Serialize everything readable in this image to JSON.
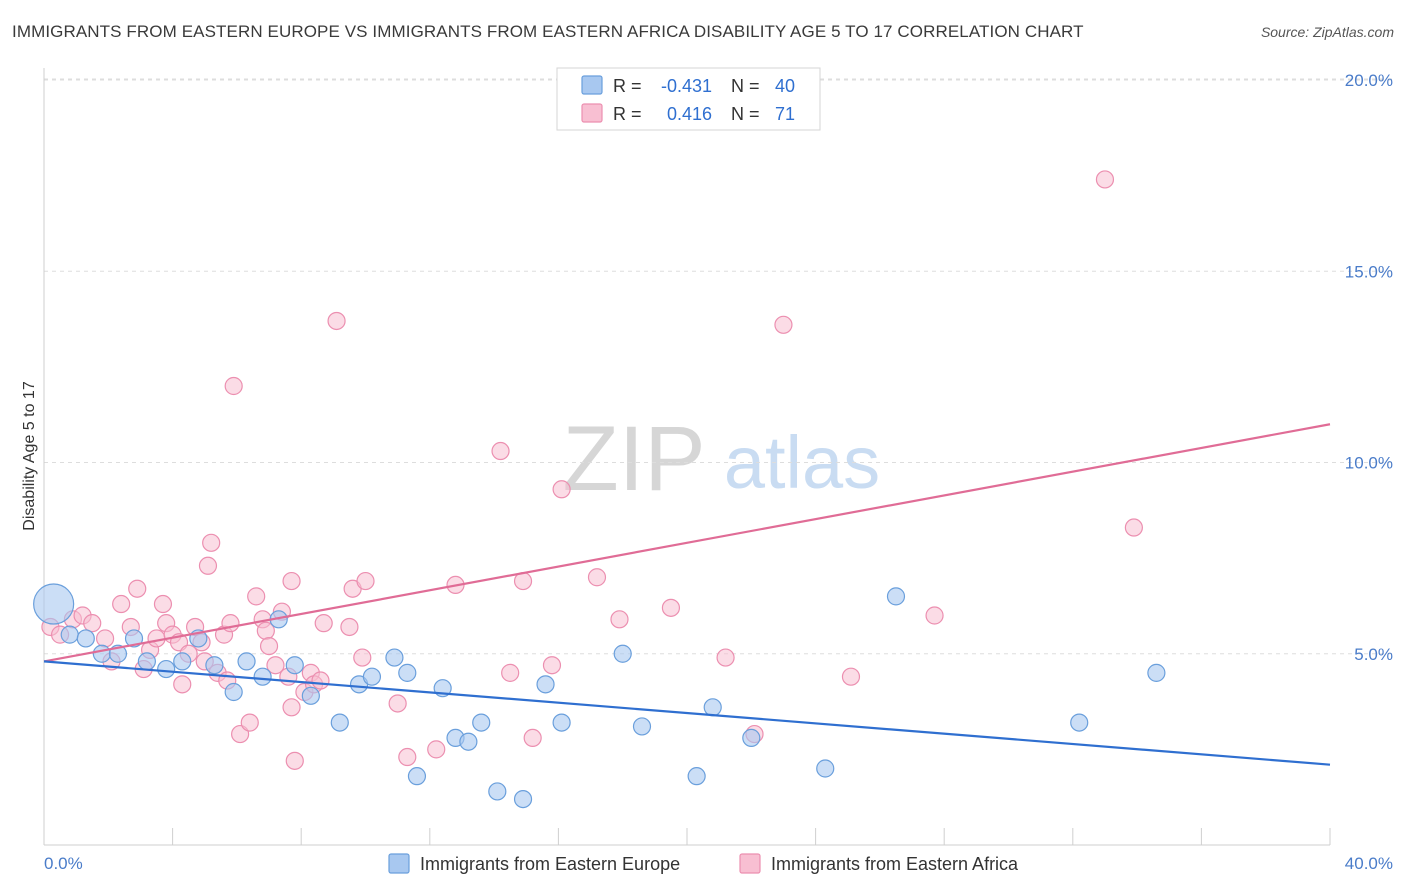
{
  "header": {
    "title": "IMMIGRANTS FROM EASTERN EUROPE VS IMMIGRANTS FROM EASTERN AFRICA DISABILITY AGE 5 TO 17 CORRELATION CHART",
    "source": "Source: ZipAtlas.com"
  },
  "watermark": {
    "zip": "ZIP",
    "atlas": "atlas"
  },
  "legend_box": {
    "rows": [
      {
        "r_label": "R =",
        "r_value": "-0.431",
        "n_label": "N =",
        "n_value": "40"
      },
      {
        "r_label": "R =",
        "r_value": "0.416",
        "n_label": "N =",
        "n_value": "71"
      }
    ]
  },
  "colors": {
    "blue_fill": "#a8c8f0",
    "blue_stroke": "#6a9fdc",
    "blue_line": "#2f6fd0",
    "pink_fill": "#f8bfd2",
    "pink_stroke": "#ec8fb0",
    "pink_line": "#e06c96",
    "tick_label": "#4a7cc9",
    "grid": "#dddddd"
  },
  "chart_data": {
    "type": "scatter",
    "title": "IMMIGRANTS FROM EASTERN EUROPE VS IMMIGRANTS FROM EASTERN AFRICA DISABILITY AGE 5 TO 17 CORRELATION CHART",
    "xlabel": "",
    "ylabel": "Disability Age 5 to 17",
    "xlim": [
      0,
      40
    ],
    "ylim": [
      0,
      20.8
    ],
    "x_tick_labels": [
      "0.0%",
      "40.0%"
    ],
    "y_ticks": [
      5,
      10,
      15,
      20
    ],
    "y_tick_labels": [
      "5.0%",
      "10.0%",
      "15.0%",
      "20.0%"
    ],
    "grid": true,
    "legend_position": "bottom-center",
    "series": [
      {
        "name": "Immigrants from Eastern Europe",
        "color": "#a8c8f0",
        "r": -0.431,
        "n": 40,
        "trend": {
          "x": [
            0,
            40
          ],
          "y": [
            4.8,
            2.1
          ]
        },
        "points": [
          {
            "x": 0.3,
            "y": 6.3,
            "big": true
          },
          {
            "x": 0.8,
            "y": 5.5
          },
          {
            "x": 1.3,
            "y": 5.4
          },
          {
            "x": 1.8,
            "y": 5.0
          },
          {
            "x": 2.3,
            "y": 5.0
          },
          {
            "x": 2.8,
            "y": 5.4
          },
          {
            "x": 3.2,
            "y": 4.8
          },
          {
            "x": 3.8,
            "y": 4.6
          },
          {
            "x": 4.3,
            "y": 4.8
          },
          {
            "x": 4.8,
            "y": 5.4
          },
          {
            "x": 5.3,
            "y": 4.7
          },
          {
            "x": 5.9,
            "y": 4.0
          },
          {
            "x": 6.3,
            "y": 4.8
          },
          {
            "x": 6.8,
            "y": 4.4
          },
          {
            "x": 7.3,
            "y": 5.9
          },
          {
            "x": 7.8,
            "y": 4.7
          },
          {
            "x": 8.3,
            "y": 3.9
          },
          {
            "x": 9.2,
            "y": 3.2
          },
          {
            "x": 9.8,
            "y": 4.2
          },
          {
            "x": 10.2,
            "y": 4.4
          },
          {
            "x": 10.9,
            "y": 4.9
          },
          {
            "x": 11.3,
            "y": 4.5
          },
          {
            "x": 11.6,
            "y": 1.8
          },
          {
            "x": 12.4,
            "y": 4.1
          },
          {
            "x": 12.8,
            "y": 2.8
          },
          {
            "x": 13.2,
            "y": 2.7
          },
          {
            "x": 13.6,
            "y": 3.2
          },
          {
            "x": 14.1,
            "y": 1.4
          },
          {
            "x": 14.9,
            "y": 1.2
          },
          {
            "x": 15.6,
            "y": 4.2
          },
          {
            "x": 16.1,
            "y": 3.2
          },
          {
            "x": 18.0,
            "y": 5.0
          },
          {
            "x": 18.6,
            "y": 3.1
          },
          {
            "x": 20.3,
            "y": 1.8
          },
          {
            "x": 20.8,
            "y": 3.6
          },
          {
            "x": 22.0,
            "y": 2.8
          },
          {
            "x": 24.3,
            "y": 2.0
          },
          {
            "x": 26.5,
            "y": 6.5
          },
          {
            "x": 32.2,
            "y": 3.2
          },
          {
            "x": 34.6,
            "y": 4.5
          }
        ]
      },
      {
        "name": "Immigrants from Eastern Africa",
        "color": "#f8bfd2",
        "r": 0.416,
        "n": 71,
        "trend": {
          "x": [
            0,
            40
          ],
          "y": [
            4.8,
            11.0
          ]
        },
        "points": [
          {
            "x": 0.2,
            "y": 5.7
          },
          {
            "x": 0.5,
            "y": 5.5
          },
          {
            "x": 0.9,
            "y": 5.9
          },
          {
            "x": 1.2,
            "y": 6.0
          },
          {
            "x": 1.5,
            "y": 5.8
          },
          {
            "x": 1.9,
            "y": 5.4
          },
          {
            "x": 2.1,
            "y": 4.8
          },
          {
            "x": 2.4,
            "y": 6.3
          },
          {
            "x": 2.7,
            "y": 5.7
          },
          {
            "x": 2.9,
            "y": 6.7
          },
          {
            "x": 3.1,
            "y": 4.6
          },
          {
            "x": 3.3,
            "y": 5.1
          },
          {
            "x": 3.5,
            "y": 5.4
          },
          {
            "x": 3.7,
            "y": 6.3
          },
          {
            "x": 3.8,
            "y": 5.8
          },
          {
            "x": 4.0,
            "y": 5.5
          },
          {
            "x": 4.2,
            "y": 5.3
          },
          {
            "x": 4.3,
            "y": 4.2
          },
          {
            "x": 4.5,
            "y": 5.0
          },
          {
            "x": 4.7,
            "y": 5.7
          },
          {
            "x": 4.9,
            "y": 5.3
          },
          {
            "x": 5.0,
            "y": 4.8
          },
          {
            "x": 5.1,
            "y": 7.3
          },
          {
            "x": 5.2,
            "y": 7.9
          },
          {
            "x": 5.4,
            "y": 4.5
          },
          {
            "x": 5.6,
            "y": 5.5
          },
          {
            "x": 5.7,
            "y": 4.3
          },
          {
            "x": 5.8,
            "y": 5.8
          },
          {
            "x": 5.9,
            "y": 12.0
          },
          {
            "x": 6.1,
            "y": 2.9
          },
          {
            "x": 6.4,
            "y": 3.2
          },
          {
            "x": 6.6,
            "y": 6.5
          },
          {
            "x": 6.8,
            "y": 5.9
          },
          {
            "x": 6.9,
            "y": 5.6
          },
          {
            "x": 7.0,
            "y": 5.2
          },
          {
            "x": 7.2,
            "y": 4.7
          },
          {
            "x": 7.4,
            "y": 6.1
          },
          {
            "x": 7.6,
            "y": 4.4
          },
          {
            "x": 7.7,
            "y": 3.6
          },
          {
            "x": 7.8,
            "y": 2.2
          },
          {
            "x": 7.7,
            "y": 6.9
          },
          {
            "x": 8.1,
            "y": 4.0
          },
          {
            "x": 8.3,
            "y": 4.5
          },
          {
            "x": 8.4,
            "y": 4.2
          },
          {
            "x": 8.6,
            "y": 4.3
          },
          {
            "x": 8.7,
            "y": 5.8
          },
          {
            "x": 9.1,
            "y": 13.7
          },
          {
            "x": 9.5,
            "y": 5.7
          },
          {
            "x": 9.6,
            "y": 6.7
          },
          {
            "x": 9.9,
            "y": 4.9
          },
          {
            "x": 10.0,
            "y": 6.9
          },
          {
            "x": 11.0,
            "y": 3.7
          },
          {
            "x": 11.3,
            "y": 2.3
          },
          {
            "x": 12.2,
            "y": 2.5
          },
          {
            "x": 12.8,
            "y": 6.8
          },
          {
            "x": 14.2,
            "y": 10.3
          },
          {
            "x": 14.5,
            "y": 4.5
          },
          {
            "x": 14.9,
            "y": 6.9
          },
          {
            "x": 15.2,
            "y": 2.8
          },
          {
            "x": 15.8,
            "y": 4.7
          },
          {
            "x": 16.1,
            "y": 9.3
          },
          {
            "x": 17.2,
            "y": 7.0
          },
          {
            "x": 17.9,
            "y": 5.9
          },
          {
            "x": 19.5,
            "y": 6.2
          },
          {
            "x": 21.2,
            "y": 4.9
          },
          {
            "x": 22.1,
            "y": 2.9
          },
          {
            "x": 23.0,
            "y": 13.6
          },
          {
            "x": 25.1,
            "y": 4.4
          },
          {
            "x": 27.7,
            "y": 6.0
          },
          {
            "x": 33.0,
            "y": 17.4
          },
          {
            "x": 33.9,
            "y": 8.3
          }
        ]
      }
    ]
  }
}
